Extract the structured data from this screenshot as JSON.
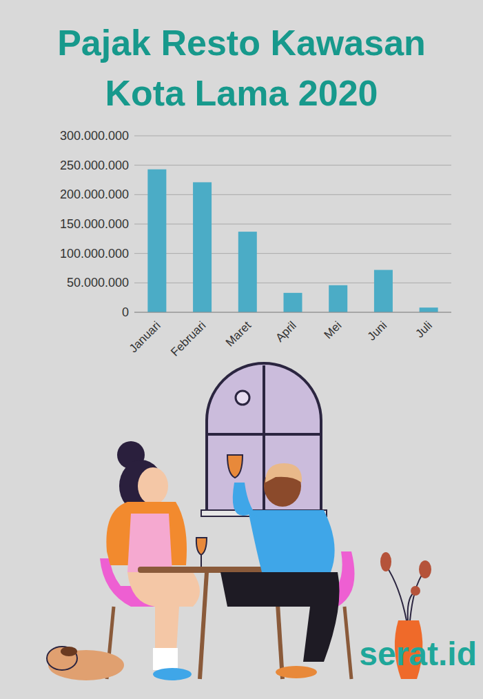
{
  "chart_data": {
    "type": "bar",
    "title": "Pajak Resto Kawasan Kota Lama 2020",
    "categories": [
      "Januari",
      "Februari",
      "Maret",
      "April",
      "Mei",
      "Juni",
      "Juli"
    ],
    "values": [
      243000000,
      221000000,
      137000000,
      33000000,
      46000000,
      72000000,
      8000000
    ],
    "color": "#4bacc6",
    "ylim": [
      0,
      300000000
    ],
    "yticks": [
      0,
      {
        "value": 50000000,
        "label": "50.000.000"
      },
      {
        "value": 100000000,
        "label": "100.000.000"
      },
      {
        "value": 150000000,
        "label": "150.000.000"
      },
      {
        "value": 200000000,
        "label": "200.000.000"
      },
      {
        "value": 250000000,
        "label": "250.000.000"
      },
      {
        "value": 300000000,
        "label": "300.000.000"
      }
    ],
    "grid": true
  },
  "brand": "serat.id"
}
